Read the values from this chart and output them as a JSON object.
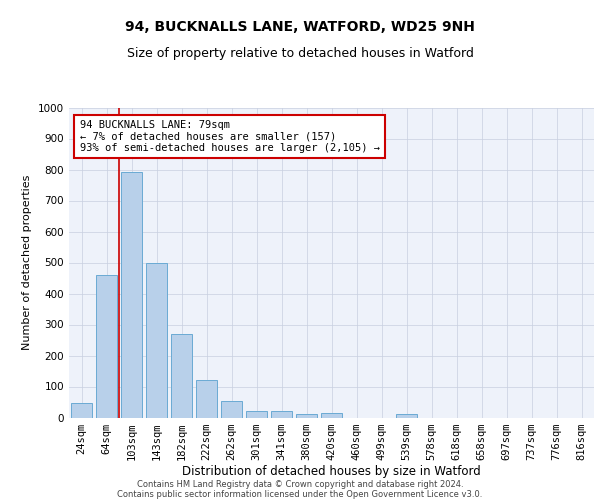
{
  "title1": "94, BUCKNALLS LANE, WATFORD, WD25 9NH",
  "title2": "Size of property relative to detached houses in Watford",
  "xlabel": "Distribution of detached houses by size in Watford",
  "ylabel": "Number of detached properties",
  "categories": [
    "24sqm",
    "64sqm",
    "103sqm",
    "143sqm",
    "182sqm",
    "222sqm",
    "262sqm",
    "301sqm",
    "341sqm",
    "380sqm",
    "420sqm",
    "460sqm",
    "499sqm",
    "539sqm",
    "578sqm",
    "618sqm",
    "658sqm",
    "697sqm",
    "737sqm",
    "776sqm",
    "816sqm"
  ],
  "values": [
    48,
    460,
    793,
    500,
    270,
    122,
    52,
    22,
    20,
    11,
    15,
    0,
    0,
    10,
    0,
    0,
    0,
    0,
    0,
    0,
    0
  ],
  "bar_color": "#b8d0ea",
  "bar_edge_color": "#6aaad4",
  "ylim": [
    0,
    1000
  ],
  "yticks": [
    0,
    100,
    200,
    300,
    400,
    500,
    600,
    700,
    800,
    900,
    1000
  ],
  "redline_x": 1.5,
  "annotation_line1": "94 BUCKNALLS LANE: 79sqm",
  "annotation_line2": "← 7% of detached houses are smaller (157)",
  "annotation_line3": "93% of semi-detached houses are larger (2,105) →",
  "annotation_box_color": "#ffffff",
  "annotation_box_edge_color": "#cc0000",
  "footer1": "Contains HM Land Registry data © Crown copyright and database right 2024.",
  "footer2": "Contains public sector information licensed under the Open Government Licence v3.0.",
  "background_color": "#eef2fa",
  "grid_color": "#c8cfe0",
  "title1_fontsize": 10,
  "title2_fontsize": 9,
  "xlabel_fontsize": 8.5,
  "ylabel_fontsize": 8,
  "tick_fontsize": 7.5,
  "footer_fontsize": 6,
  "annotation_fontsize": 7.5
}
